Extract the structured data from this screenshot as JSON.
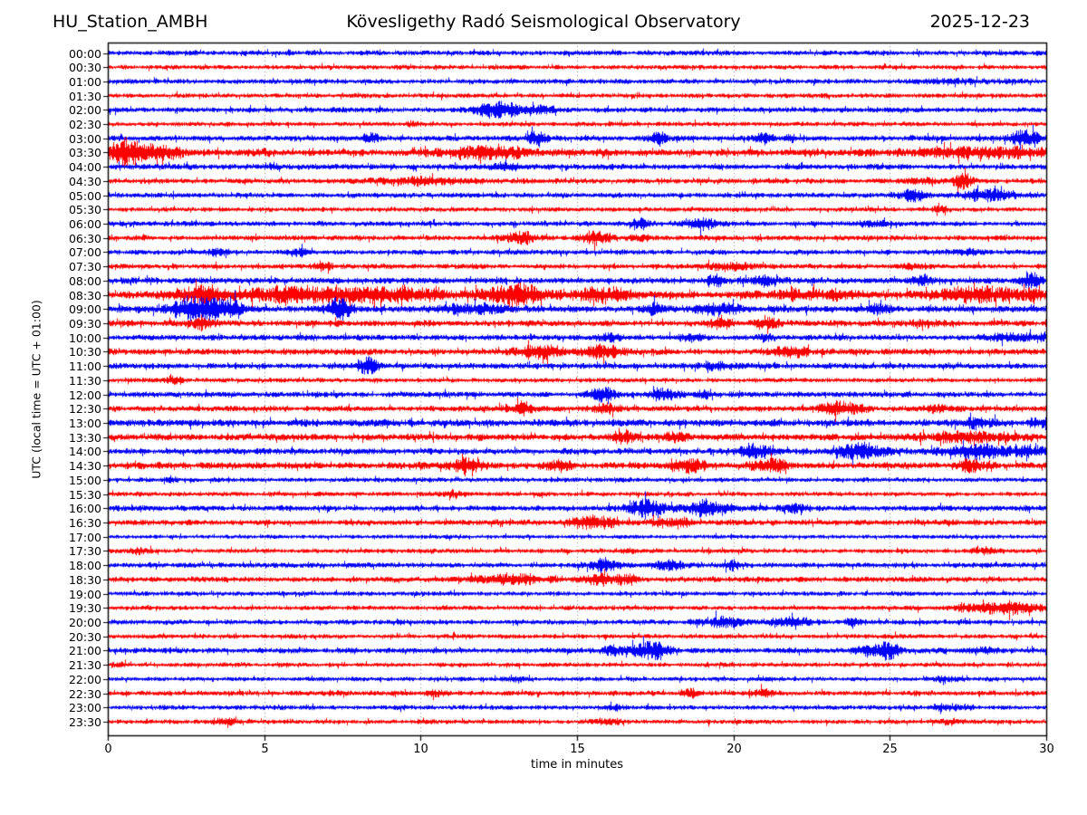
{
  "header": {
    "station": "HU_Station_AMBH",
    "observatory": "Kövesligethy Radó Seismological Observatory",
    "date": "2025-12-23"
  },
  "chart_data": {
    "type": "line",
    "subtype": "helicorder-day-plot-seismogram",
    "title": "Kövesligethy Radó Seismological Observatory",
    "station": "HU_Station_AMBH",
    "date": "2025-12-23",
    "xlabel": "time in minutes",
    "ylabel": "UTC (local time = UTC + 01:00)",
    "xlim": [
      0,
      30
    ],
    "xticks": [
      0,
      5,
      10,
      15,
      20,
      25,
      30
    ],
    "grid_minutes": [
      5,
      10,
      15,
      20,
      25
    ],
    "grid_style": "vertical dotted",
    "legend": "none",
    "colors": {
      "blue": "#0000ff",
      "red": "#ff0000"
    },
    "row_interval_minutes": 30,
    "traces": [
      {
        "time": "00:00",
        "color": "blue",
        "base": 1.0,
        "bursts": []
      },
      {
        "time": "00:30",
        "color": "red",
        "base": 0.9,
        "bursts": []
      },
      {
        "time": "01:00",
        "color": "blue",
        "base": 1.0,
        "bursts": [
          [
            27,
            1.5,
            0.5
          ]
        ]
      },
      {
        "time": "01:30",
        "color": "red",
        "base": 0.9,
        "bursts": []
      },
      {
        "time": "02:00",
        "color": "blue",
        "base": 1.0,
        "bursts": [
          [
            12.5,
            0.8,
            2.8
          ],
          [
            14,
            0.4,
            1.2
          ]
        ]
      },
      {
        "time": "02:30",
        "color": "red",
        "base": 0.9,
        "bursts": [
          [
            9.7,
            0.3,
            0.8
          ]
        ]
      },
      {
        "time": "03:00",
        "color": "blue",
        "base": 1.1,
        "bursts": [
          [
            8.4,
            0.25,
            1.8
          ],
          [
            13.7,
            0.3,
            2.2
          ],
          [
            17.6,
            0.25,
            2.2
          ],
          [
            21,
            0.3,
            1.6
          ],
          [
            21.8,
            0.2,
            1.4
          ],
          [
            29.3,
            0.5,
            2.6
          ]
        ]
      },
      {
        "time": "03:30",
        "color": "red",
        "base": 1.4,
        "bursts": [
          [
            0.6,
            0.7,
            3.5
          ],
          [
            1.8,
            0.5,
            1.5
          ],
          [
            12,
            1.2,
            1.8
          ],
          [
            28,
            2,
            1.2
          ]
        ]
      },
      {
        "time": "04:00",
        "color": "blue",
        "base": 1.1,
        "bursts": [
          [
            5.3,
            0.2,
            0.9
          ],
          [
            12.7,
            0.5,
            1.0
          ]
        ]
      },
      {
        "time": "04:30",
        "color": "red",
        "base": 1.0,
        "bursts": [
          [
            10,
            1.5,
            1.2
          ],
          [
            26,
            0.5,
            0.8
          ],
          [
            27.3,
            0.3,
            3.2
          ]
        ]
      },
      {
        "time": "05:00",
        "color": "blue",
        "base": 1.0,
        "bursts": [
          [
            25.8,
            0.5,
            1.8
          ],
          [
            28.3,
            0.8,
            2.4
          ]
        ]
      },
      {
        "time": "05:30",
        "color": "red",
        "base": 0.9,
        "bursts": [
          [
            26.6,
            0.3,
            1.0
          ]
        ]
      },
      {
        "time": "06:00",
        "color": "blue",
        "base": 1.0,
        "bursts": [
          [
            17,
            0.3,
            1.5
          ],
          [
            18.9,
            0.4,
            2.0
          ],
          [
            24.5,
            0.6,
            0.9
          ]
        ]
      },
      {
        "time": "06:30",
        "color": "red",
        "base": 1.0,
        "bursts": [
          [
            13.2,
            0.5,
            2.0
          ],
          [
            15.6,
            0.5,
            2.0
          ],
          [
            17,
            0.4,
            1.0
          ]
        ]
      },
      {
        "time": "07:00",
        "color": "blue",
        "base": 1.0,
        "bursts": [
          [
            3.5,
            0.3,
            1.0
          ],
          [
            6.1,
            0.3,
            1.2
          ],
          [
            27.6,
            0.4,
            0.8
          ]
        ]
      },
      {
        "time": "07:30",
        "color": "red",
        "base": 1.0,
        "bursts": [
          [
            6.9,
            0.3,
            1.5
          ],
          [
            20,
            1.0,
            1.0
          ],
          [
            25.6,
            0.5,
            0.8
          ]
        ]
      },
      {
        "time": "08:00",
        "color": "blue",
        "base": 1.2,
        "bursts": [
          [
            19.4,
            0.3,
            1.5
          ],
          [
            21,
            0.4,
            1.3
          ],
          [
            26,
            0.4,
            1.2
          ],
          [
            29.5,
            0.4,
            1.8
          ]
        ]
      },
      {
        "time": "08:30",
        "color": "red",
        "base": 1.5,
        "bursts": [
          [
            3,
            1.0,
            1.5
          ],
          [
            6,
            1.5,
            1.8
          ],
          [
            9,
            1.5,
            1.5
          ],
          [
            13,
            1.0,
            2.2
          ],
          [
            15.8,
            0.8,
            1.8
          ],
          [
            22.5,
            1.2,
            1.2
          ],
          [
            28,
            1.5,
            1.8
          ]
        ]
      },
      {
        "time": "09:00",
        "color": "blue",
        "base": 1.3,
        "bursts": [
          [
            2.8,
            0.8,
            3.5
          ],
          [
            3.8,
            0.5,
            2.5
          ],
          [
            7.4,
            0.4,
            3.0
          ],
          [
            11.5,
            1.0,
            1.2
          ],
          [
            17.5,
            0.4,
            1.4
          ],
          [
            19.5,
            0.6,
            1.4
          ],
          [
            24.6,
            0.4,
            1.2
          ]
        ]
      },
      {
        "time": "09:30",
        "color": "red",
        "base": 1.2,
        "bursts": [
          [
            3,
            0.4,
            1.2
          ],
          [
            19.6,
            0.4,
            1.2
          ],
          [
            21.2,
            0.4,
            1.3
          ],
          [
            26,
            0.5,
            0.9
          ]
        ]
      },
      {
        "time": "10:00",
        "color": "blue",
        "base": 1.1,
        "bursts": [
          [
            16,
            0.4,
            1.2
          ],
          [
            18.6,
            0.4,
            1.3
          ],
          [
            21,
            0.3,
            1.1
          ],
          [
            29,
            1.0,
            1.3
          ]
        ]
      },
      {
        "time": "10:30",
        "color": "red",
        "base": 1.2,
        "bursts": [
          [
            13.7,
            0.8,
            1.8
          ],
          [
            15.8,
            0.7,
            1.8
          ],
          [
            21.7,
            0.7,
            1.3
          ]
        ]
      },
      {
        "time": "11:00",
        "color": "blue",
        "base": 1.1,
        "bursts": [
          [
            8.3,
            0.3,
            2.4
          ],
          [
            19.5,
            0.8,
            1.0
          ]
        ]
      },
      {
        "time": "11:30",
        "color": "red",
        "base": 0.9,
        "bursts": [
          [
            2.1,
            0.3,
            1.3
          ]
        ]
      },
      {
        "time": "12:00",
        "color": "blue",
        "base": 1.1,
        "bursts": [
          [
            15.8,
            0.4,
            2.2
          ],
          [
            17.8,
            0.5,
            1.8
          ],
          [
            19,
            0.3,
            1.0
          ]
        ]
      },
      {
        "time": "12:30",
        "color": "red",
        "base": 1.1,
        "bursts": [
          [
            13.2,
            0.5,
            1.4
          ],
          [
            15.9,
            0.5,
            1.4
          ],
          [
            23.4,
            0.7,
            2.2
          ],
          [
            26.5,
            0.5,
            1.0
          ]
        ]
      },
      {
        "time": "13:00",
        "color": "blue",
        "base": 1.4,
        "bursts": [
          [
            27.8,
            0.5,
            1.0
          ],
          [
            30,
            0.5,
            1.2
          ]
        ]
      },
      {
        "time": "13:30",
        "color": "red",
        "base": 1.3,
        "bursts": [
          [
            16.4,
            0.4,
            1.4
          ],
          [
            18.1,
            0.4,
            1.2
          ],
          [
            27.5,
            1.5,
            1.2
          ]
        ]
      },
      {
        "time": "14:00",
        "color": "blue",
        "base": 1.2,
        "bursts": [
          [
            20.7,
            0.5,
            1.7
          ],
          [
            24,
            0.8,
            2.2
          ],
          [
            27.8,
            1.0,
            1.7
          ],
          [
            29.5,
            0.5,
            1.4
          ]
        ]
      },
      {
        "time": "14:30",
        "color": "red",
        "base": 1.3,
        "bursts": [
          [
            11.4,
            0.5,
            1.8
          ],
          [
            14.4,
            0.4,
            1.4
          ],
          [
            18.6,
            0.5,
            1.8
          ],
          [
            21.1,
            0.5,
            1.8
          ],
          [
            27.6,
            0.5,
            1.4
          ]
        ]
      },
      {
        "time": "15:00",
        "color": "blue",
        "base": 0.9,
        "bursts": [
          [
            2,
            0.15,
            1.4
          ]
        ]
      },
      {
        "time": "15:30",
        "color": "red",
        "base": 0.9,
        "bursts": [
          [
            11,
            0.4,
            0.9
          ]
        ]
      },
      {
        "time": "16:00",
        "color": "blue",
        "base": 1.1,
        "bursts": [
          [
            17.2,
            0.6,
            2.6
          ],
          [
            19.2,
            0.7,
            2.6
          ],
          [
            22,
            0.5,
            1.0
          ]
        ]
      },
      {
        "time": "16:30",
        "color": "red",
        "base": 1.1,
        "bursts": [
          [
            15.5,
            0.7,
            2.0
          ],
          [
            18,
            0.6,
            1.4
          ]
        ]
      },
      {
        "time": "17:00",
        "color": "blue",
        "base": 0.8,
        "bursts": []
      },
      {
        "time": "17:30",
        "color": "red",
        "base": 0.9,
        "bursts": [
          [
            1,
            0.3,
            0.8
          ],
          [
            16.7,
            0.3,
            0.8
          ],
          [
            28,
            0.5,
            0.9
          ]
        ]
      },
      {
        "time": "18:00",
        "color": "blue",
        "base": 1.0,
        "bursts": [
          [
            15.8,
            0.5,
            2.2
          ],
          [
            17.9,
            0.5,
            1.6
          ],
          [
            20,
            0.3,
            1.0
          ]
        ]
      },
      {
        "time": "18:30",
        "color": "red",
        "base": 1.1,
        "bursts": [
          [
            12.8,
            1.0,
            1.6
          ],
          [
            15.7,
            0.5,
            1.8
          ],
          [
            16.6,
            0.3,
            1.4
          ]
        ]
      },
      {
        "time": "19:00",
        "color": "blue",
        "base": 0.9,
        "bursts": []
      },
      {
        "time": "19:30",
        "color": "red",
        "base": 0.9,
        "bursts": [
          [
            28.7,
            1.3,
            2.5
          ]
        ]
      },
      {
        "time": "20:00",
        "color": "blue",
        "base": 1.0,
        "bursts": [
          [
            19.7,
            0.7,
            1.9
          ],
          [
            21.8,
            0.6,
            1.9
          ],
          [
            23.8,
            0.3,
            1.1
          ]
        ]
      },
      {
        "time": "20:30",
        "color": "red",
        "base": 0.9,
        "bursts": []
      },
      {
        "time": "21:00",
        "color": "blue",
        "base": 1.1,
        "bursts": [
          [
            16.5,
            0.8,
            1.4
          ],
          [
            17.5,
            0.4,
            2.8
          ],
          [
            24.3,
            0.5,
            1.2
          ],
          [
            25,
            0.4,
            2.4
          ],
          [
            27.8,
            0.4,
            1.0
          ]
        ]
      },
      {
        "time": "21:30",
        "color": "red",
        "base": 0.9,
        "bursts": [
          [
            0.4,
            0.2,
            1.0
          ]
        ]
      },
      {
        "time": "22:00",
        "color": "blue",
        "base": 0.9,
        "bursts": [
          [
            13,
            0.4,
            0.8
          ],
          [
            26.8,
            0.4,
            1.1
          ]
        ]
      },
      {
        "time": "22:30",
        "color": "red",
        "base": 1.0,
        "bursts": [
          [
            7.3,
            0.3,
            0.8
          ],
          [
            10.5,
            0.25,
            1.2
          ],
          [
            18.6,
            0.3,
            1.2
          ],
          [
            20.9,
            0.3,
            1.5
          ]
        ]
      },
      {
        "time": "23:00",
        "color": "blue",
        "base": 0.9,
        "bursts": [
          [
            16.2,
            0.3,
            0.7
          ],
          [
            26.9,
            0.6,
            1.0
          ]
        ]
      },
      {
        "time": "23:30",
        "color": "red",
        "base": 0.9,
        "bursts": [
          [
            3.7,
            0.4,
            1.2
          ],
          [
            16,
            0.4,
            1.0
          ],
          [
            27,
            0.4,
            0.8
          ]
        ]
      }
    ]
  }
}
